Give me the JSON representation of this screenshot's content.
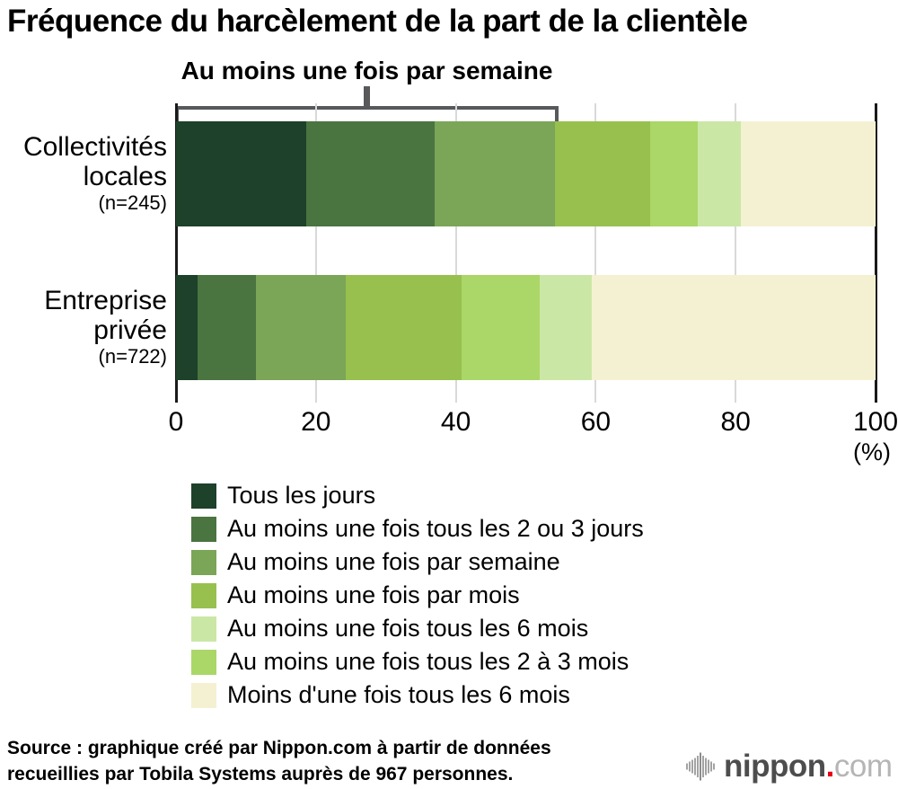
{
  "title": "Fréquence du harcèlement de la part de la clientèle",
  "chart_data": {
    "type": "bar",
    "subtype": "horizontal-stacked",
    "title": "Fréquence du harcèlement de la part de la clientèle",
    "unit": "%",
    "xlabel": "(%)",
    "xlim": [
      0,
      100
    ],
    "x_ticks": [
      0,
      20,
      40,
      60,
      80,
      100
    ],
    "grid": true,
    "annotation": {
      "label": "Au moins une fois par semaine",
      "applies_to_category": "Collectivités locales (n=245)",
      "covers_series": [
        "Tous les jours",
        "Au moins une fois tous les 2 ou 3 jours",
        "Au moins une fois par semaine"
      ]
    },
    "categories": [
      {
        "label_line1": "Collectivités",
        "label_line2": "locales",
        "n_label": "(n=245)"
      },
      {
        "label_line1": "Entreprise",
        "label_line2": "privée",
        "n_label": "(n=722)"
      }
    ],
    "series": [
      {
        "name": "Tous les jours",
        "color": "#1d412a",
        "values": [
          18.6,
          3.1
        ]
      },
      {
        "name": "Au moins une fois tous les 2 ou 3 jours",
        "color": "#4a7440",
        "values": [
          18.4,
          8.3
        ]
      },
      {
        "name": "Au moins une fois par semaine",
        "color": "#7ba557",
        "values": [
          17.2,
          12.8
        ]
      },
      {
        "name": "Au moins une fois par mois",
        "color": "#97c04e",
        "values": [
          13.6,
          16.6
        ]
      },
      {
        "name": "Au moins une fois tous les 2 à 3 mois",
        "color": "#aad767",
        "values": [
          6.8,
          11.2
        ]
      },
      {
        "name": "Au moins une fois tous les 6 mois",
        "color": "#cbe7a6",
        "values": [
          6.1,
          7.5
        ]
      },
      {
        "name": "Moins d'une fois tous les 6 mois",
        "color": "#f4f1d2",
        "values": [
          19.3,
          40.5
        ]
      }
    ],
    "legend": {
      "position": "bottom-left",
      "items": [
        {
          "label": "Tous les jours",
          "color": "#1d412a"
        },
        {
          "label": "Au moins une fois tous les 2 ou 3 jours",
          "color": "#4a7440"
        },
        {
          "label": "Au moins une fois par semaine",
          "color": "#7ba557"
        },
        {
          "label": "Au moins une fois par mois",
          "color": "#97c04e"
        },
        {
          "label": "Au moins une fois tous les 6 mois",
          "color": "#cbe7a6"
        },
        {
          "label": "Au moins une fois tous les 2 à 3 mois",
          "color": "#aad767"
        },
        {
          "label": "Moins d'une fois tous les 6 mois",
          "color": "#f4f1d2"
        }
      ]
    }
  },
  "source": {
    "line1": "Source : graphique créé par Nippon.com à partir de données",
    "line2": "recueillies par Tobila Systems auprès de 967 personnes."
  },
  "logo": {
    "word": "nippon",
    "dot": ".",
    "suffix": "com",
    "dot_color": "#e60012"
  }
}
